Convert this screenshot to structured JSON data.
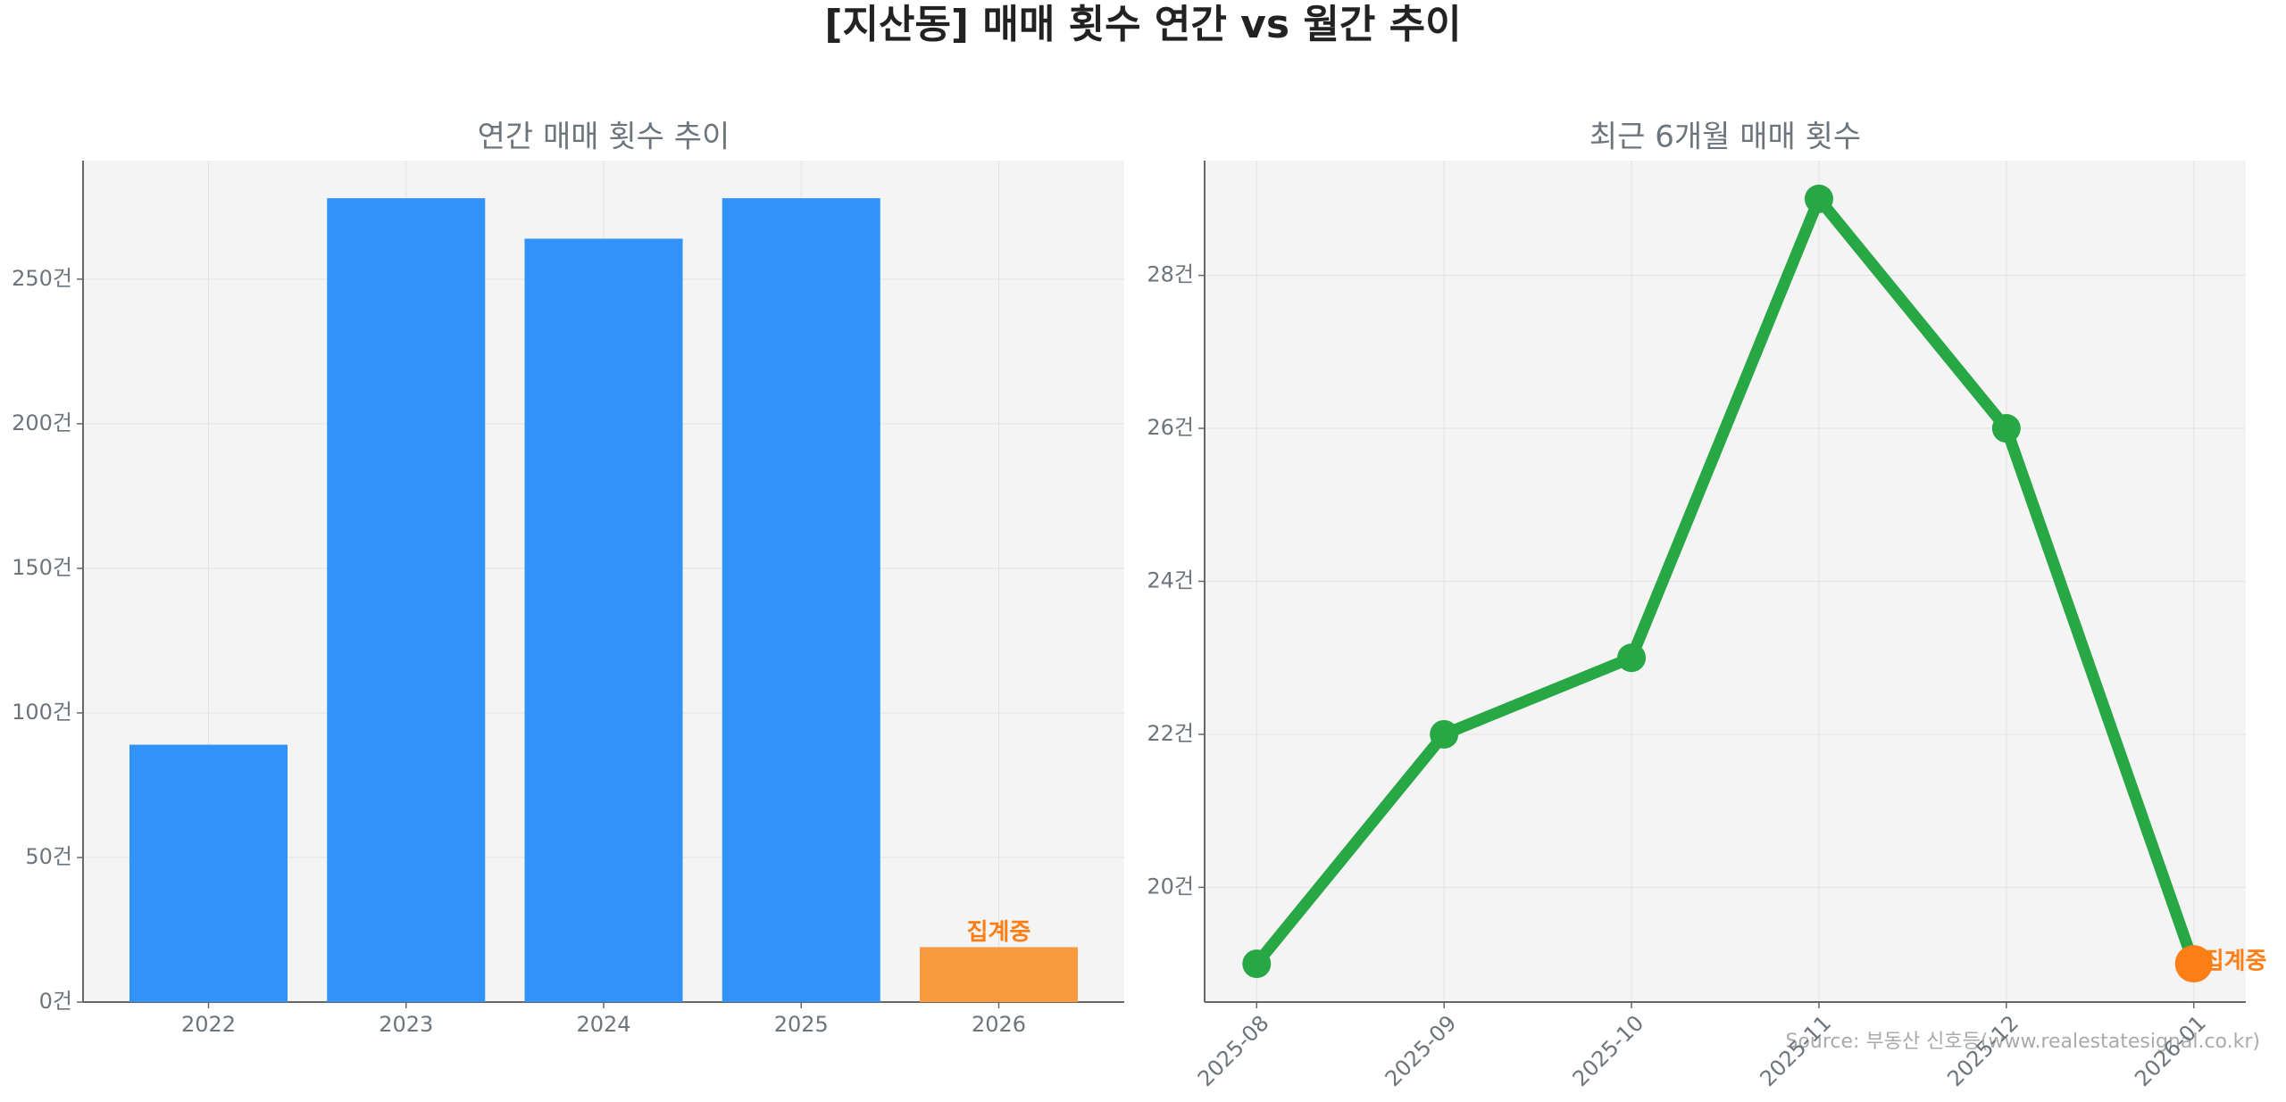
{
  "title": "[지산동] 매매 횟수 연간 vs 월간 추이",
  "source": "Source: 부동산 신호등(www.realestatesignal.co.kr)",
  "chart_data": [
    {
      "type": "bar",
      "title": "연간 매매 횟수 추이",
      "categories": [
        "2022",
        "2023",
        "2024",
        "2025",
        "2026"
      ],
      "values": [
        89,
        278,
        264,
        278,
        19
      ],
      "colors": [
        "#3192fa",
        "#3192fa",
        "#3192fa",
        "#3192fa",
        "#fa9a40"
      ],
      "annotation": {
        "text": "집계중",
        "category": "2026",
        "color": "#fd7e14"
      },
      "ylim": [
        0,
        291
      ],
      "yticks": [
        {
          "value": 0,
          "label": "0건"
        },
        {
          "value": 50,
          "label": "50건"
        },
        {
          "value": 100,
          "label": "100건"
        },
        {
          "value": 150,
          "label": "150건"
        },
        {
          "value": 200,
          "label": "200건"
        },
        {
          "value": 250,
          "label": "250건"
        }
      ],
      "grid": true
    },
    {
      "type": "line",
      "title": "최근 6개월 매매 횟수",
      "categories": [
        "2025-08",
        "2025-09",
        "2025-10",
        "2025-11",
        "2025-12",
        "2026-01"
      ],
      "values": [
        19,
        22,
        23,
        29,
        26,
        19
      ],
      "color": "#28a745",
      "marker_colors": [
        "#28a745",
        "#28a745",
        "#28a745",
        "#28a745",
        "#28a745",
        "#fd7e14"
      ],
      "annotation": {
        "text": "집계중",
        "category": "2026-01",
        "color": "#fd7e14"
      },
      "ylim": [
        18.5,
        29.5
      ],
      "yticks": [
        {
          "value": 20,
          "label": "20건"
        },
        {
          "value": 22,
          "label": "22건"
        },
        {
          "value": 24,
          "label": "24건"
        },
        {
          "value": 26,
          "label": "26건"
        },
        {
          "value": 28,
          "label": "28건"
        }
      ],
      "grid": true
    }
  ]
}
